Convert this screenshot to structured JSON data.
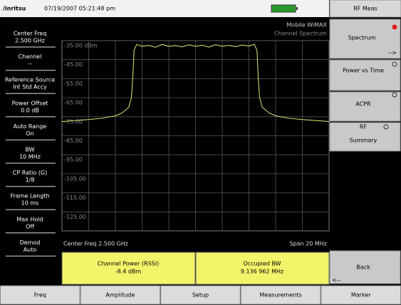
{
  "header": {
    "logo": "/inritsu",
    "datetime": "07/19/2007 05:21:48 pm"
  },
  "left_panel": [
    {
      "label": "Center Freq",
      "value": "2.500 GHz"
    },
    {
      "label": "Channel",
      "value": "--"
    },
    {
      "label": "Reference Source",
      "value": "Int Std Accy"
    },
    {
      "label": "Power Offset",
      "value": "0.0 dB"
    },
    {
      "label": "Auto Range",
      "value": "On"
    },
    {
      "label": "BW",
      "value": "10 MHz"
    },
    {
      "label": "CP Ratio (G)",
      "value": "1/8"
    },
    {
      "label": "Frame Length",
      "value": "10 ms"
    },
    {
      "label": "Max Hold",
      "value": "Off"
    },
    {
      "label": "Demod",
      "value": "Auto"
    }
  ],
  "chart_data": {
    "type": "line",
    "title": "Mobile WiMAX",
    "subtitle": "Channel Spectrum",
    "x": [
      -10,
      -9,
      -8,
      -7,
      -6,
      -5.5,
      -5,
      -4.8,
      -4.7,
      -4.6,
      -4.4,
      -4,
      -3.5,
      -3,
      -2.5,
      -2,
      -1.5,
      -1,
      -0.5,
      0,
      0.5,
      1,
      1.5,
      2,
      2.5,
      3,
      3.5,
      4,
      4.4,
      4.6,
      4.7,
      4.8,
      5,
      5.5,
      6,
      7,
      8,
      9,
      10
    ],
    "series": [
      {
        "color": "#e8e87c",
        "values": [
          -77.5,
          -77,
          -76.5,
          -75.8,
          -74.5,
          -73,
          -70,
          -65,
          -55,
          -40,
          -37,
          -38,
          -37.5,
          -38.5,
          -37,
          -38,
          -37.6,
          -38.3,
          -37.2,
          -38,
          -37.4,
          -38.4,
          -37.1,
          -38,
          -37.5,
          -38.2,
          -37.3,
          -37.8,
          -37,
          -40,
          -55,
          -65,
          -70,
          -73,
          -74.5,
          -75.8,
          -76.5,
          -77,
          -77.5
        ]
      }
    ],
    "xlim": [
      -10,
      10
    ],
    "ylim": [
      -135,
      -35
    ],
    "yticks": [
      {
        "value": -35,
        "label": "-35.00 dBm"
      },
      {
        "value": -45,
        "label": "-45.00"
      },
      {
        "value": -55,
        "label": "-55.00"
      },
      {
        "value": -65,
        "label": "-65.00"
      },
      {
        "value": -75,
        "label": "-75.00"
      },
      {
        "value": -85,
        "label": "-85.00"
      },
      {
        "value": -95,
        "label": "-95.00"
      },
      {
        "value": -105,
        "label": "-105.00"
      },
      {
        "value": -115,
        "label": "-115.00"
      },
      {
        "value": -125,
        "label": "-125.00"
      }
    ],
    "grid": true,
    "x_left_label": "Center Freq 2.500 GHz",
    "x_right_label": "Span 20 MHz"
  },
  "results": [
    {
      "label": "Channel Power (RSSI)",
      "value": "-8.4 dBm"
    },
    {
      "label": "Occupied BW",
      "value": "9.136 962 MHz"
    }
  ],
  "right_panel": {
    "title": "RF Meas",
    "buttons": [
      {
        "label": "Spectrum",
        "sub": "-->"
      },
      {
        "label": "Power vs Time"
      },
      {
        "label": "ACPR"
      },
      {
        "label": "RF",
        "sub": "Summary"
      },
      {
        "label": "Back",
        "sub": "<--"
      }
    ]
  },
  "tabs": [
    "Freq",
    "Amplitude",
    "Setup",
    "Measurements",
    "Marker"
  ]
}
